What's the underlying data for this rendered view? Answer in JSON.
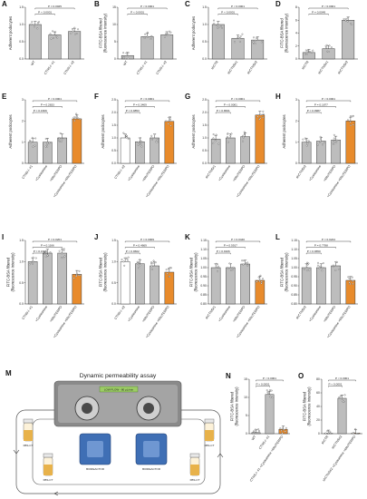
{
  "panels": [
    {
      "letter": "A",
      "ylabel": [
        "Adherent podocytes"
      ],
      "ylim": [
        0,
        1.5
      ],
      "yticks": [
        "0.0",
        "0.5",
        "1.0",
        "1.5"
      ],
      "x": [
        "WT",
        "CTNS-/- #1",
        "CTNS-/- #2"
      ],
      "values": [
        1.0,
        0.7,
        0.8
      ],
      "fills": [
        "#bdbdbd",
        "#bdbdbd",
        "#bdbdbd"
      ],
      "p": [
        {
          "text": "P = 0.0025",
          "a": 0,
          "b": 2
        },
        {
          "text": "P < 0.0001",
          "a": 0,
          "b": 1
        }
      ]
    },
    {
      "letter": "B",
      "ylabel": [
        "FITC-BSA filtered",
        "(fluorescence intensity)"
      ],
      "ylim": [
        0,
        15
      ],
      "yticks": [
        "0",
        "5",
        "10",
        "15"
      ],
      "x": [
        "WT",
        "CTNS-/- #1",
        "CTNS-/- #2"
      ],
      "values": [
        1.0,
        6.5,
        7.0
      ],
      "fills": [
        "#bdbdbd",
        "#bdbdbd",
        "#bdbdbd"
      ],
      "p": [
        {
          "text": "P < 0.0001",
          "a": 0,
          "b": 2
        },
        {
          "text": "P < 0.0001",
          "a": 0,
          "b": 1
        }
      ]
    },
    {
      "letter": "C",
      "ylabel": [
        "Adherent podocytes"
      ],
      "ylim": [
        0,
        1.5
      ],
      "yticks": [
        "0.0",
        "0.5",
        "1.0",
        "1.5"
      ],
      "x": [
        "shCTR",
        "shCTNS#1",
        "shCTNS#2"
      ],
      "values": [
        1.0,
        0.6,
        0.55
      ],
      "fills": [
        "#bdbdbd",
        "#bdbdbd",
        "#bdbdbd"
      ],
      "p": [
        {
          "text": "P < 0.0001",
          "a": 0,
          "b": 2
        },
        {
          "text": "P < 0.0001",
          "a": 0,
          "b": 1
        }
      ]
    },
    {
      "letter": "D",
      "ylabel": [
        "FITC-BSA filtered",
        "(fluorescence intensity)"
      ],
      "ylim": [
        0,
        8
      ],
      "yticks": [
        "0",
        "2",
        "4",
        "6",
        "8"
      ],
      "x": [
        "shCTR",
        "shCTNS#1",
        "shCTNS#2"
      ],
      "values": [
        1.0,
        1.6,
        6.0
      ],
      "fills": [
        "#bdbdbd",
        "#bdbdbd",
        "#bdbdbd"
      ],
      "p": [
        {
          "text": "P < 0.0001",
          "a": 0,
          "b": 2
        },
        {
          "text": "P = 0.0049",
          "a": 0,
          "b": 1
        }
      ]
    },
    {
      "letter": "E",
      "ylabel": [
        "Adherent podocytes"
      ],
      "ylim": [
        0,
        3
      ],
      "yticks": [
        "0",
        "1",
        "2",
        "3"
      ],
      "x": [
        "CTNS-/- #1",
        "+Cysteamine",
        "+MitoTEMPO",
        "+Cysteamine +MitoTEMPO"
      ],
      "values": [
        1.0,
        1.0,
        1.2,
        2.1
      ],
      "fills": [
        "#bdbdbd",
        "#bdbdbd",
        "#bdbdbd",
        "#e88b2c"
      ],
      "p": [
        {
          "text": "P < 0.0001",
          "a": 0,
          "b": 3
        },
        {
          "text": "P = 0.2833",
          "a": 0,
          "b": 2
        },
        {
          "text": "P = 0.1609",
          "a": 0,
          "b": 1
        }
      ]
    },
    {
      "letter": "F",
      "ylabel": [
        "Adherent podocytes"
      ],
      "ylim": [
        0,
        2.5
      ],
      "yticks": [
        "0.0",
        "0.5",
        "1.0",
        "1.5",
        "2.0",
        "2.5"
      ],
      "x": [
        "CTNS-/- #2",
        "+Cysteamine",
        "+MitoTEMPO",
        "+Cysteamine +MitoTEMPO"
      ],
      "values": [
        1.0,
        0.85,
        1.0,
        1.65
      ],
      "fills": [
        "#ffffff",
        "#bdbdbd",
        "#bdbdbd",
        "#e88b2c"
      ],
      "p": [
        {
          "text": "P < 0.0001",
          "a": 0,
          "b": 3
        },
        {
          "text": "P = 0.3409",
          "a": 0,
          "b": 2
        },
        {
          "text": "P = 0.9853",
          "a": 0,
          "b": 1
        }
      ]
    },
    {
      "letter": "G",
      "ylabel": [
        "Adherent podocytes"
      ],
      "ylim": [
        0,
        2.5
      ],
      "yticks": [
        "0.0",
        "0.5",
        "1.0",
        "1.5",
        "2.0",
        "2.5"
      ],
      "x": [
        "shCTNS#1",
        "+Cysteamine",
        "+MitoTEMPO",
        "+Cysteamine +MitoTEMPO"
      ],
      "values": [
        0.95,
        1.0,
        1.05,
        1.9
      ],
      "fills": [
        "#bdbdbd",
        "#bdbdbd",
        "#bdbdbd",
        "#e88b2c"
      ],
      "p": [
        {
          "text": "P < 0.0001",
          "a": 0,
          "b": 3
        },
        {
          "text": "P < 0.0001",
          "a": 0,
          "b": 2
        },
        {
          "text": "P = 0.8631",
          "a": 0,
          "b": 1
        }
      ]
    },
    {
      "letter": "H",
      "ylabel": [
        "Adherent podocytes"
      ],
      "ylim": [
        0,
        3
      ],
      "yticks": [
        "0",
        "1",
        "2",
        "3"
      ],
      "x": [
        "shCTNS#2",
        "+Cysteamine",
        "+MitoTEMPO",
        "+Cysteamine +MitoTEMPO"
      ],
      "values": [
        1.0,
        1.05,
        1.1,
        2.0
      ],
      "fills": [
        "#bdbdbd",
        "#bdbdbd",
        "#bdbdbd",
        "#e88b2c"
      ],
      "p": [
        {
          "text": "P < 0.0001",
          "a": 0,
          "b": 3
        },
        {
          "text": "P = 0.1877",
          "a": 0,
          "b": 2
        },
        {
          "text": "P = 0.9987",
          "a": 0,
          "b": 1
        }
      ]
    },
    {
      "letter": "I",
      "ylabel": [
        "FITC-BSA filtered",
        "(fluorescence intensity)"
      ],
      "ylim": [
        0,
        1.5
      ],
      "yticks": [
        "0.0",
        "0.5",
        "1.0",
        "1.5"
      ],
      "x": [
        "CTNS-/- #1",
        "+Cysteamine",
        "+MitoTEMPO",
        "+Cysteamine +MitoTEMPO"
      ],
      "values": [
        1.0,
        1.2,
        1.2,
        0.7
      ],
      "fills": [
        "#bdbdbd",
        "#bdbdbd",
        "#bdbdbd",
        "#e88b2c"
      ],
      "p": [
        {
          "text": "P = 0.0201",
          "a": 0,
          "b": 3
        },
        {
          "text": "P = 0.1166",
          "a": 0,
          "b": 2
        },
        {
          "text": "P = 0.1638",
          "a": 0,
          "b": 1
        }
      ]
    },
    {
      "letter": "J",
      "ylabel": [
        "FITC-BSA filtered",
        "(fluorescence intensity)"
      ],
      "ylim": [
        0,
        1.5
      ],
      "yticks": [
        "0.0",
        "0.5",
        "1.0",
        "1.5"
      ],
      "x": [
        "CTNS-/- #2",
        "+Cysteamine",
        "+MitoTEMPO",
        "+Cysteamine +MitoTEMPO"
      ],
      "values": [
        1.0,
        0.95,
        0.9,
        0.75
      ],
      "fills": [
        "#ffffff",
        "#bdbdbd",
        "#bdbdbd",
        "#e88b2c"
      ],
      "p": [
        {
          "text": "P = 0.0009",
          "a": 0,
          "b": 3
        },
        {
          "text": "P = 0.4669",
          "a": 0,
          "b": 2
        },
        {
          "text": "P = 0.9602",
          "a": 0,
          "b": 1
        }
      ]
    },
    {
      "letter": "K",
      "ylabel": [
        "FITC-BSA filtered",
        "(fluorescence intensity)"
      ],
      "ylim": [
        0.8,
        1.15
      ],
      "yticks": [
        "0.80",
        "0.85",
        "0.90",
        "0.95",
        "1.00",
        "1.05",
        "1.10",
        "1.15"
      ],
      "x": [
        "shCTNS#1",
        "+Cysteamine",
        "+MitoTEMPO",
        "+Cysteamine +MitoTEMPO"
      ],
      "values": [
        1.0,
        1.0,
        1.02,
        0.93
      ],
      "fills": [
        "#bdbdbd",
        "#bdbdbd",
        "#bdbdbd",
        "#e88b2c"
      ],
      "p": [
        {
          "text": "P = 0.0440",
          "a": 0,
          "b": 3
        },
        {
          "text": "P = 0.5917",
          "a": 0,
          "b": 2
        },
        {
          "text": "P = 0.9106",
          "a": 0,
          "b": 1
        }
      ]
    },
    {
      "letter": "L",
      "ylabel": [
        "FITC-BSA filtered",
        "(fluorescence intensity)"
      ],
      "ylim": [
        0.8,
        1.15
      ],
      "yticks": [
        "0.80",
        "0.85",
        "0.90",
        "0.95",
        "1.00",
        "1.05",
        "1.10",
        "1.15"
      ],
      "x": [
        "shCTNS#2",
        "+Cysteamine",
        "+MitoTEMPO",
        "+Cysteamine +MitoTEMPO"
      ],
      "values": [
        1.0,
        1.0,
        1.01,
        0.93
      ],
      "fills": [
        "#bdbdbd",
        "#bdbdbd",
        "#bdbdbd",
        "#e88b2c"
      ],
      "p": [
        {
          "text": "P = 0.0224",
          "a": 0,
          "b": 3
        },
        {
          "text": "P = 0.7788",
          "a": 0,
          "b": 2
        },
        {
          "text": "P = 0.9650",
          "a": 0,
          "b": 1
        }
      ]
    },
    {
      "letter": "N",
      "ylabel": [
        "FITC-BSA filtered",
        "(fluorescence intensity)"
      ],
      "ylim": [
        0,
        15
      ],
      "yticks": [
        "0",
        "5",
        "10",
        "15"
      ],
      "x": [
        "WT",
        "CTNS-/- #1",
        "CTNS-/- #1 +Cysteamine +MitoTEMPO"
      ],
      "values": [
        0.3,
        10.8,
        1.2
      ],
      "fills": [
        "#bdbdbd",
        "#bdbdbd",
        "#e88b2c"
      ],
      "p": [
        {
          "text": "P < 0.0001",
          "a": 0,
          "b": 2
        },
        {
          "text": "P < 0.0001",
          "a": 0,
          "b": 1
        }
      ]
    },
    {
      "letter": "O",
      "ylabel": [
        "FITC-BSA filtered",
        "(fluorescence intensity)"
      ],
      "ylim": [
        0,
        80
      ],
      "yticks": [
        "0",
        "20",
        "40",
        "60",
        "80"
      ],
      "x": [
        "shCTR",
        "shCTNS#2",
        "shCTNS#2 +Cysteamine +MitoTEMPO"
      ],
      "values": [
        0.5,
        52,
        0.8
      ],
      "fills": [
        "#bdbdbd",
        "#bdbdbd",
        "#e88b2c"
      ],
      "p": [
        {
          "text": "P < 0.0001",
          "a": 0,
          "b": 2
        },
        {
          "text": "P < 0.0001",
          "a": 0,
          "b": 1
        }
      ]
    }
  ],
  "diagram": {
    "letter": "M",
    "title": "Dynamic permeability assay",
    "flow_label": "LOW FLOW - 80 μL/min",
    "bioreactor_left": "BIOREACTOR",
    "bioreactor_right": "BIOREACTOR",
    "tube_labels": [
      "FBS-CT",
      "FBS-CT",
      "FBS-CT",
      "FBS-CT"
    ],
    "colors": {
      "pump": "#8a8a8a",
      "bioreactor": "#3f6fb5",
      "flow": "#9ccc65",
      "medium": "#e8b24a"
    }
  }
}
